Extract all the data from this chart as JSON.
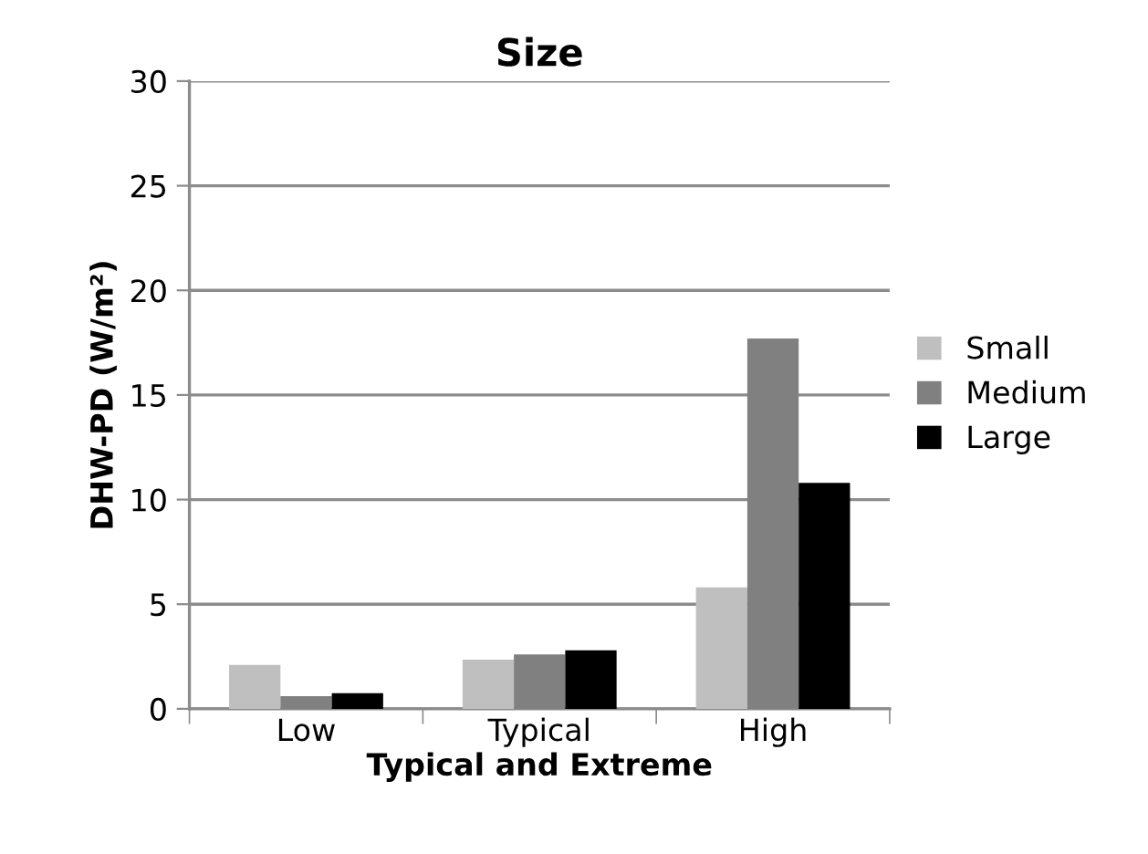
{
  "chart_data": {
    "type": "bar",
    "title": "Size",
    "xlabel": "Typical and Extreme",
    "ylabel": "DHW-PD (W/m²)",
    "categories": [
      "Low",
      "Typical",
      "High"
    ],
    "series": [
      {
        "name": "Small",
        "color": "#bfbfbf",
        "values": [
          2.1,
          2.35,
          5.8
        ]
      },
      {
        "name": "Medium",
        "color": "#808080",
        "values": [
          0.6,
          2.6,
          17.7
        ]
      },
      {
        "name": "Large",
        "color": "#000000",
        "values": [
          0.75,
          2.8,
          10.8
        ]
      }
    ],
    "ylim": [
      0,
      30
    ],
    "yticks": [
      0,
      5,
      10,
      15,
      20,
      25,
      30
    ],
    "grid": "y",
    "legend": "right"
  }
}
